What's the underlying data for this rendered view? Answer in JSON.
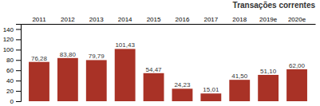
{
  "chart_data": {
    "type": "bar",
    "title": "Transações correntes",
    "categories": [
      "2011",
      "2012",
      "2013",
      "2014",
      "2015",
      "2016",
      "2017",
      "2018",
      "2019e",
      "2020e"
    ],
    "values": [
      76.28,
      83.8,
      79.79,
      101.43,
      54.47,
      24.23,
      15.01,
      41.5,
      51.1,
      62.0
    ],
    "value_labels": [
      "76,28",
      "83,80",
      "79,79",
      "101,43",
      "54,47",
      "24,23",
      "15,01",
      "41,50",
      "51,10",
      "62,00"
    ],
    "data_labels": true,
    "color": "#a93226",
    "ylim": [
      0,
      150
    ],
    "yticks": [
      0,
      20,
      40,
      60,
      80,
      100,
      120,
      140
    ],
    "grid": false
  }
}
